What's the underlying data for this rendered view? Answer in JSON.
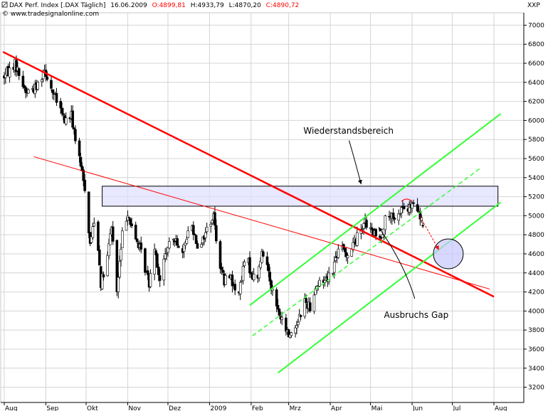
{
  "header": {
    "title": "DAX Perf. Index [.DAX  Täglich]",
    "date": "16.06.2009",
    "open": "O:4899,81",
    "high": "H:4933,79",
    "low": "L:4870,20",
    "close": "C:4890,72",
    "source": "© www.tradesignalonline.com",
    "currency": "XXP"
  },
  "chart_data": {
    "type": "candlestick",
    "y_ticks": [
      3200,
      3400,
      3600,
      3800,
      4000,
      4200,
      4400,
      4600,
      4800,
      5000,
      5200,
      5400,
      5600,
      5800,
      6000,
      6200,
      6400,
      6600,
      6800,
      7000
    ],
    "ylim": [
      3040,
      7130
    ],
    "x_ticks": [
      {
        "label": "Aug",
        "day": 0
      },
      {
        "label": "Sep",
        "day": 31
      },
      {
        "label": "Okt",
        "day": 61
      },
      {
        "label": "Nov",
        "day": 92
      },
      {
        "label": "Dez",
        "day": 122
      },
      {
        "label": "2009",
        "day": 153
      },
      {
        "label": "Feb",
        "day": 184
      },
      {
        "label": "Mrz",
        "day": 212
      },
      {
        "label": "Apr",
        "day": 243
      },
      {
        "label": "Mai",
        "day": 273
      },
      {
        "label": "Jun",
        "day": 304
      },
      {
        "label": "Jul",
        "day": 334
      },
      {
        "label": "Aug",
        "day": 365
      }
    ],
    "grid": true,
    "anchors": [
      [
        -1,
        6450
      ],
      [
        8,
        6600
      ],
      [
        16,
        6300
      ],
      [
        24,
        6350
      ],
      [
        30,
        6550
      ],
      [
        36,
        6300
      ],
      [
        45,
        6000
      ],
      [
        50,
        6050
      ],
      [
        55,
        5650
      ],
      [
        60,
        5300
      ],
      [
        64,
        4700
      ],
      [
        68,
        5050
      ],
      [
        72,
        4300
      ],
      [
        76,
        4450
      ],
      [
        80,
        4900
      ],
      [
        84,
        4200
      ],
      [
        88,
        4800
      ],
      [
        92,
        5050
      ],
      [
        96,
        4800
      ],
      [
        100,
        4700
      ],
      [
        104,
        4500
      ],
      [
        108,
        4300
      ],
      [
        112,
        4700
      ],
      [
        116,
        4300
      ],
      [
        120,
        4600
      ],
      [
        124,
        4700
      ],
      [
        128,
        4800
      ],
      [
        132,
        4500
      ],
      [
        136,
        4800
      ],
      [
        140,
        4900
      ],
      [
        144,
        4700
      ],
      [
        148,
        4750
      ],
      [
        152,
        4900
      ],
      [
        156,
        5000
      ],
      [
        160,
        4550
      ],
      [
        164,
        4300
      ],
      [
        168,
        4400
      ],
      [
        172,
        4200
      ],
      [
        176,
        4250
      ],
      [
        180,
        4600
      ],
      [
        184,
        4400
      ],
      [
        188,
        4300
      ],
      [
        192,
        4600
      ],
      [
        196,
        4500
      ],
      [
        200,
        4200
      ],
      [
        204,
        4000
      ],
      [
        208,
        3850
      ],
      [
        212,
        3750
      ],
      [
        216,
        3800
      ],
      [
        220,
        3950
      ],
      [
        224,
        4100
      ],
      [
        228,
        4050
      ],
      [
        232,
        4250
      ],
      [
        236,
        4300
      ],
      [
        240,
        4350
      ],
      [
        244,
        4400
      ],
      [
        248,
        4600
      ],
      [
        252,
        4650
      ],
      [
        256,
        4600
      ],
      [
        260,
        4700
      ],
      [
        264,
        4800
      ],
      [
        268,
        4950
      ],
      [
        272,
        4850
      ],
      [
        276,
        4800
      ],
      [
        280,
        4750
      ],
      [
        284,
        4950
      ],
      [
        288,
        5000
      ],
      [
        292,
        4900
      ],
      [
        296,
        5100
      ],
      [
        300,
        5050
      ],
      [
        304,
        5100
      ],
      [
        308,
        5050
      ],
      [
        312,
        4891
      ]
    ],
    "last_candle": {
      "open": 4899.81,
      "high": 4933.79,
      "low": 4870.2,
      "close": 4890.72
    },
    "colors": {
      "up_candle": "#ffffff",
      "down_candle": "#000000",
      "resistance_line": "#ff0000",
      "channel": "#33ff33",
      "zone_fill": "#e0e0ff",
      "target_circle": "#c8c8ff"
    },
    "annotations": [
      {
        "text": "Wiederstandsbereich"
      },
      {
        "text": "Ausbruchs Gap"
      }
    ],
    "lines": {
      "resistance_thick": [
        [
          -1,
          6720
        ],
        [
          365,
          4150
        ]
      ],
      "resistance_thin": [
        [
          22,
          5620
        ],
        [
          362,
          4230
        ]
      ],
      "channel_upper": [
        [
          183,
          4060
        ],
        [
          370,
          6070
        ]
      ],
      "channel_lower": [
        [
          204,
          3350
        ],
        [
          370,
          5140
        ]
      ],
      "channel_mid": [
        [
          185,
          3740
        ],
        [
          355,
          5500
        ]
      ]
    },
    "resistance_zone": [
      5100,
      5310
    ],
    "target_circle": {
      "day": 331,
      "value": 4600
    },
    "volume_series": {
      "name": "DAX Perf. Index"
    }
  }
}
